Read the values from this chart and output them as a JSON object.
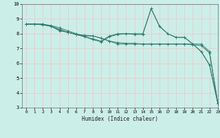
{
  "title": "",
  "xlabel": "Humidex (Indice chaleur)",
  "ylabel": "",
  "xlim": [
    -0.5,
    23
  ],
  "ylim": [
    3,
    10
  ],
  "yticks": [
    3,
    4,
    5,
    6,
    7,
    8,
    9,
    10
  ],
  "xticks": [
    0,
    1,
    2,
    3,
    4,
    5,
    6,
    7,
    8,
    9,
    10,
    11,
    12,
    13,
    14,
    15,
    16,
    17,
    18,
    19,
    20,
    21,
    22,
    23
  ],
  "background_color": "#cceee8",
  "grid_color": "#f0c8c8",
  "line_color": "#2e7d6e",
  "series": [
    {
      "x": [
        0,
        1,
        2,
        3,
        4,
        5,
        6,
        7,
        8,
        9,
        10,
        11,
        12,
        13,
        14,
        15,
        16,
        17,
        18,
        19,
        20,
        21,
        22,
        23
      ],
      "y": [
        8.65,
        8.65,
        8.65,
        8.55,
        8.4,
        8.2,
        8.0,
        7.85,
        7.85,
        7.7,
        7.5,
        7.3,
        7.3,
        7.3,
        7.3,
        7.3,
        7.3,
        7.3,
        7.3,
        7.3,
        7.3,
        7.3,
        6.8,
        3.3
      ]
    },
    {
      "x": [
        0,
        1,
        2,
        3,
        4,
        5,
        6,
        7,
        8,
        9,
        10,
        11,
        12,
        13,
        14,
        15,
        16,
        17,
        18,
        19,
        20,
        21,
        22,
        23
      ],
      "y": [
        8.65,
        8.65,
        8.6,
        8.5,
        8.25,
        8.1,
        7.95,
        7.8,
        7.65,
        7.5,
        7.85,
        8.0,
        8.0,
        8.0,
        8.0,
        9.7,
        8.5,
        8.0,
        7.75,
        7.75,
        7.3,
        6.8,
        5.9,
        3.3
      ]
    },
    {
      "x": [
        0,
        1,
        2,
        3,
        4,
        5,
        6,
        7,
        8,
        9,
        10,
        11,
        12,
        13,
        14,
        15,
        16,
        17,
        18,
        19,
        20,
        21,
        22,
        23
      ],
      "y": [
        8.65,
        8.65,
        8.6,
        8.5,
        8.2,
        8.1,
        7.95,
        7.8,
        7.6,
        7.45,
        7.8,
        7.95,
        8.0,
        7.95,
        7.95,
        9.7,
        8.5,
        8.0,
        7.75,
        7.75,
        7.3,
        6.8,
        5.9,
        3.3
      ]
    },
    {
      "x": [
        0,
        2,
        3,
        4,
        5,
        6,
        7,
        8,
        9,
        10,
        11,
        12,
        13,
        14,
        15,
        16,
        17,
        18,
        19,
        20,
        21,
        22,
        23
      ],
      "y": [
        8.65,
        8.65,
        8.5,
        8.3,
        8.1,
        7.95,
        7.9,
        7.85,
        7.7,
        7.5,
        7.4,
        7.35,
        7.35,
        7.3,
        7.3,
        7.3,
        7.3,
        7.3,
        7.3,
        7.25,
        7.2,
        6.7,
        3.3
      ]
    }
  ]
}
